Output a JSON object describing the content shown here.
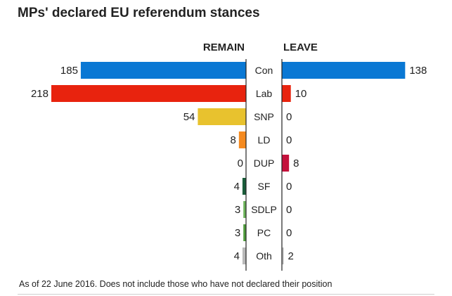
{
  "title": "MPs' declared EU referendum stances",
  "footnote": "As of 22 June 2016. Does not include those who have not declared their position",
  "chart_data": {
    "type": "bar",
    "orientation": "horizontal-diverging",
    "title": "MPs' declared EU referendum stances",
    "left_header": "REMAIN",
    "right_header": "LEAVE",
    "categories": [
      "Con",
      "Lab",
      "SNP",
      "LD",
      "DUP",
      "SF",
      "SDLP",
      "PC",
      "Oth"
    ],
    "series": [
      {
        "name": "REMAIN",
        "values": [
          185,
          218,
          54,
          8,
          0,
          4,
          3,
          3,
          4
        ]
      },
      {
        "name": "LEAVE",
        "values": [
          138,
          10,
          0,
          0,
          8,
          0,
          0,
          0,
          2
        ]
      }
    ],
    "colors": [
      "#0a78d4",
      "#e8230e",
      "#e8c22e",
      "#f58a1f",
      "#c4113b",
      "#1a5d3a",
      "#6cb35a",
      "#4f9b3c",
      "#b9b9b9"
    ],
    "xlim": [
      0,
      218
    ]
  }
}
